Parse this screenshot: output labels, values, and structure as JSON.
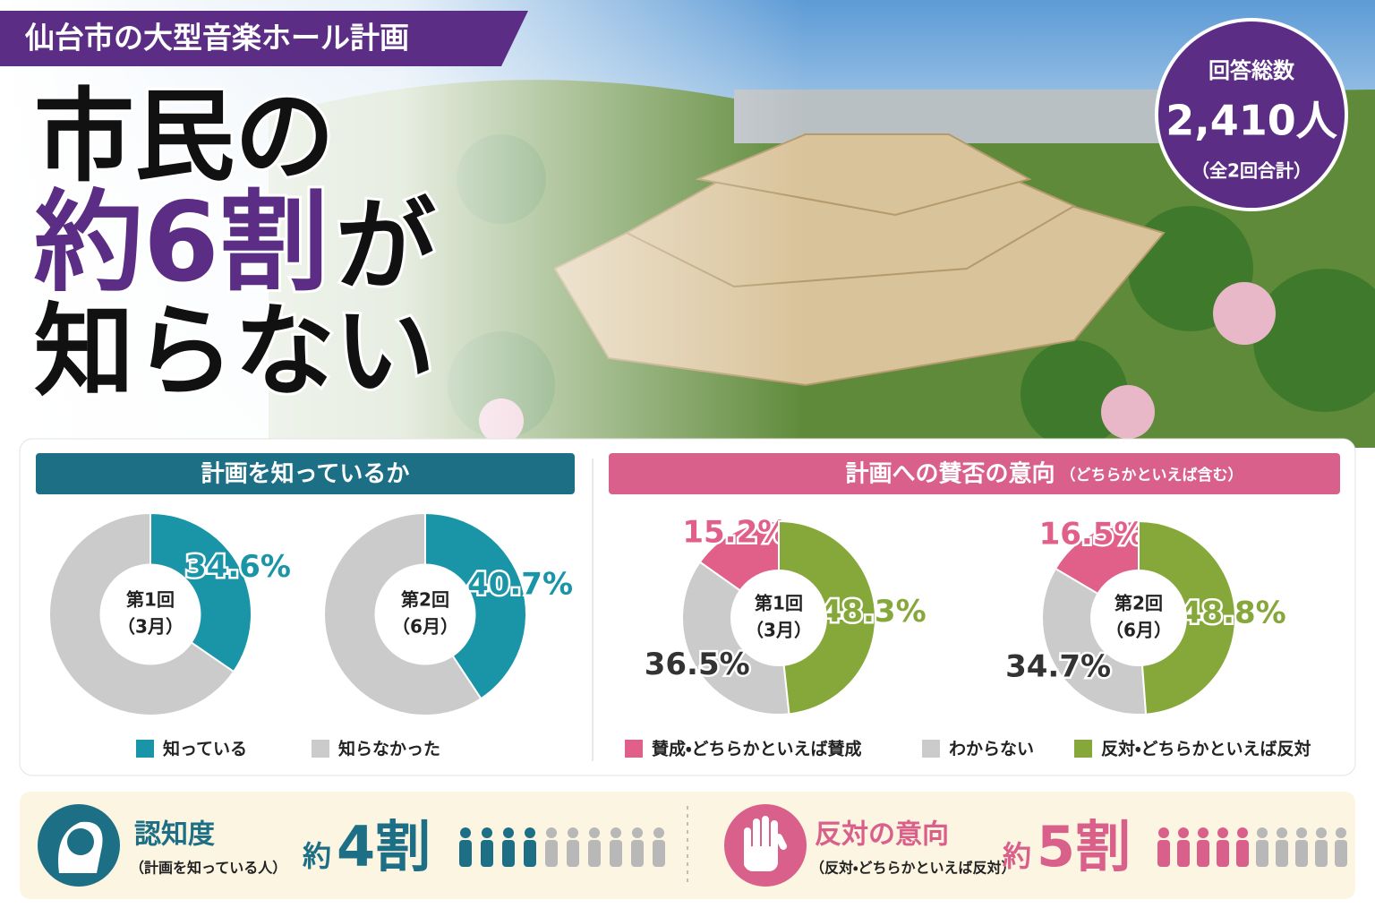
{
  "header": {
    "tag": "仙台市の大型音楽ホール計画",
    "headline": {
      "line1": "市民の",
      "highlight": "約6割",
      "line2_rest": "が",
      "line3": "知らない"
    }
  },
  "badge": {
    "title": "回答総数",
    "total": "2,410人",
    "note": "（全2回合計）"
  },
  "chart_data": [
    {
      "type": "donut",
      "title": "計画を知っているか",
      "direction": "clockwise",
      "categories": [
        "知っている",
        "知らなかった"
      ],
      "colors": [
        "#1a95a8",
        "#cbcbcb"
      ],
      "series": [
        {
          "name": "第1回",
          "period": "（3月）",
          "values": [
            34.6,
            65.4
          ],
          "value_labels": [
            "34.6%",
            null
          ]
        },
        {
          "name": "第2回",
          "period": "（6月）",
          "values": [
            40.7,
            59.3
          ],
          "value_labels": [
            "40.7%",
            null
          ]
        }
      ]
    },
    {
      "type": "donut",
      "title": "計画への賛否の意向",
      "subtitle": "（どちらかといえば含む）",
      "direction": "counterclockwise",
      "categories": [
        "賛成・どちらかといえば賛成",
        "わからない",
        "反対・どちらかといえば反対"
      ],
      "colors": [
        "#e0608a",
        "#cbcbcb",
        "#86a83a"
      ],
      "series": [
        {
          "name": "第1回",
          "period": "（3月）",
          "values": [
            15.2,
            36.5,
            48.3
          ],
          "value_labels": [
            "15.2%",
            "36.5%",
            "48.3%"
          ]
        },
        {
          "name": "第2回",
          "period": "（6月）",
          "values": [
            16.5,
            34.7,
            48.8
          ],
          "value_labels": [
            "16.5%",
            "34.7%",
            "48.8%"
          ]
        }
      ]
    }
  ],
  "summary": [
    {
      "title": "認知度",
      "note": "（計画を知っている人）",
      "prefix": "約",
      "figure": "4割"
    },
    {
      "title": "反対の意向",
      "note": "（反対・どちらかといえば反対）",
      "prefix": "約",
      "figure": "5割"
    }
  ]
}
